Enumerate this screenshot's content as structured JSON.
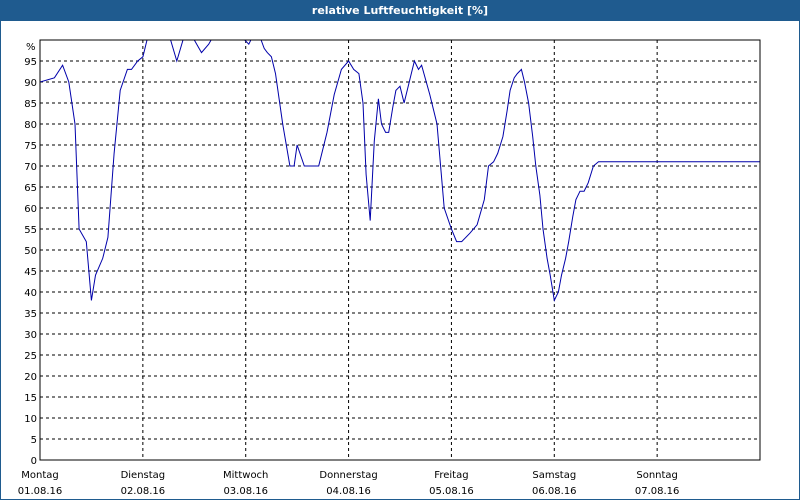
{
  "window": {
    "title": "relative Luftfeuchtigkeit [%]"
  },
  "colors": {
    "title_bar": "#1f5b8f",
    "line": "#0000aa",
    "grid": "#000000",
    "background": "#ffffff"
  },
  "chart_data": {
    "type": "line",
    "title": "relative Luftfeuchtigkeit [%]",
    "unit_label": "%",
    "ylim": [
      0,
      100
    ],
    "yticks": [
      0,
      5,
      10,
      15,
      20,
      25,
      30,
      35,
      40,
      45,
      50,
      55,
      60,
      65,
      70,
      75,
      80,
      85,
      90,
      95
    ],
    "xlim": [
      0,
      7
    ],
    "x_axis_unit": "days since 01.08.16 00:00",
    "grid": true,
    "days": [
      {
        "weekday": "Montag",
        "date": "01.08.16"
      },
      {
        "weekday": "Dienstag",
        "date": "02.08.16"
      },
      {
        "weekday": "Mittwoch",
        "date": "03.08.16"
      },
      {
        "weekday": "Donnerstag",
        "date": "04.08.16"
      },
      {
        "weekday": "Freitag",
        "date": "05.08.16"
      },
      {
        "weekday": "Samstag",
        "date": "06.08.16"
      },
      {
        "weekday": "Sonntag",
        "date": "07.08.16"
      }
    ],
    "series": [
      {
        "name": "relative Luftfeuchtigkeit",
        "x": [
          0,
          0.14,
          0.22,
          0.28,
          0.34,
          0.38,
          0.45,
          0.5,
          0.54,
          0.61,
          0.66,
          0.72,
          0.78,
          0.85,
          0.89,
          0.95,
          1.0,
          1.04,
          1.07,
          1.11,
          1.15,
          1.2,
          1.27,
          1.33,
          1.39,
          1.43,
          1.5,
          1.57,
          1.64,
          1.71,
          1.79,
          1.86,
          1.93,
          1.99,
          2.03,
          2.07,
          2.11,
          2.15,
          2.18,
          2.21,
          2.25,
          2.29,
          2.36,
          2.43,
          2.47,
          2.5,
          2.57,
          2.64,
          2.71,
          2.79,
          2.86,
          2.93,
          3.0,
          3.05,
          3.1,
          3.14,
          3.17,
          3.21,
          3.25,
          3.29,
          3.32,
          3.36,
          3.39,
          3.43,
          3.46,
          3.5,
          3.54,
          3.57,
          3.61,
          3.64,
          3.68,
          3.71,
          3.79,
          3.86,
          3.93,
          4.0,
          4.05,
          4.1,
          4.18,
          4.25,
          4.32,
          4.36,
          4.41,
          4.45,
          4.5,
          4.54,
          4.57,
          4.61,
          4.64,
          4.68,
          4.71,
          4.75,
          4.79,
          4.82,
          4.86,
          4.89,
          4.93,
          4.96,
          5.0,
          5.04,
          5.07,
          5.11,
          5.14,
          5.18,
          5.21,
          5.25,
          5.29,
          5.33,
          5.38,
          5.43,
          5.5,
          5.57,
          5.64,
          5.71,
          5.77,
          5.82,
          5.86,
          5.93,
          5.97,
          6.0,
          6.04,
          6.07,
          6.1,
          6.14,
          6.18,
          6.21,
          6.24,
          6.28,
          6.32,
          6.36,
          6.4,
          6.43,
          6.5,
          6.54,
          6.57,
          6.61,
          6.64,
          6.68,
          6.71,
          6.75,
          6.79,
          6.82,
          6.86,
          6.89,
          6.93,
          7.0
        ],
        "values": [
          90,
          91,
          94,
          90,
          80,
          55,
          52,
          38,
          44,
          48,
          53,
          73,
          88,
          93,
          93,
          95,
          96,
          100,
          100,
          100,
          101,
          100,
          100,
          95,
          100,
          100,
          100,
          97,
          99,
          102,
          103,
          103,
          101,
          100,
          99,
          101,
          100,
          100,
          98,
          97,
          96,
          92,
          80,
          70,
          70,
          75,
          70,
          70,
          70,
          78,
          87,
          93,
          95,
          93,
          92,
          85,
          68,
          57,
          76,
          86,
          80,
          78,
          78,
          84,
          88,
          89,
          85,
          88,
          92,
          95,
          93,
          94,
          87,
          80,
          60,
          55,
          52,
          52,
          54,
          56,
          62,
          70,
          71,
          73,
          77,
          83,
          88,
          91,
          92,
          93,
          90,
          85,
          77,
          70,
          63,
          55,
          48,
          44,
          38,
          40,
          44,
          48,
          52,
          58,
          62,
          64,
          64,
          66,
          70,
          71,
          71,
          71,
          71,
          71,
          71,
          71,
          71,
          71,
          71,
          71,
          71,
          71,
          71,
          71,
          71,
          71,
          71,
          71,
          71,
          71,
          71,
          71,
          71,
          71,
          71,
          71,
          71,
          71,
          71,
          71,
          71,
          71,
          71,
          71,
          71,
          71
        ]
      }
    ]
  }
}
